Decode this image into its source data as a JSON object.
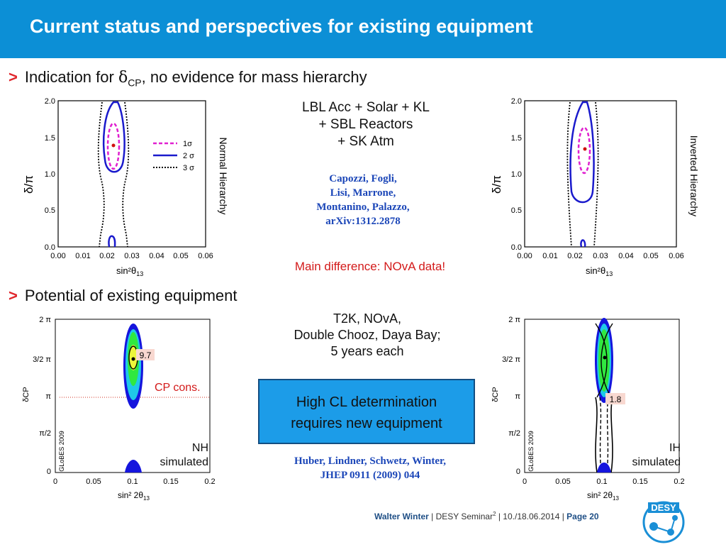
{
  "header": {
    "title": "Current status and perspectives for existing equipment",
    "color": "#0c8fd6"
  },
  "bullets": {
    "mark": ">",
    "b1_prefix": "Indication for ",
    "b1_delta": "δ",
    "b1_sub": "CP",
    "b1_suffix": ", no evidence for mass hierarchy",
    "b2": "Potential of existing equipment"
  },
  "top_plots": {
    "ticks_y": [
      "2.0",
      "1.5",
      "1.0",
      "0.5",
      "0.0"
    ],
    "ticks_x": [
      "0.00",
      "0.01",
      "0.02",
      "0.03",
      "0.04",
      "0.05",
      "0.06"
    ],
    "ylabel": "δ/π",
    "xlabel": "sin²θ",
    "xlabel_sub": "13",
    "left_label": "Normal Hierarchy",
    "right_label": "Inverted Hierarchy",
    "legend": [
      "1σ",
      "2 σ",
      "3 σ"
    ]
  },
  "center_top": {
    "lines": [
      "LBL Acc + Solar + KL",
      "+ SBL Reactors",
      "+ SK Atm"
    ],
    "cite": [
      "Capozzi, Fogli,",
      "Lisi, Marrone,",
      "Montanino, Palazzo,",
      "arXiv:1312.2878"
    ],
    "main_diff": "Main difference: NOvA data!"
  },
  "bottom_plots": {
    "ticks_y": [
      "2 π",
      "3/2 π",
      "π",
      "π/2",
      "0"
    ],
    "ticks_x": [
      "0",
      "0.05",
      "0.1",
      "0.15",
      "0.2"
    ],
    "ylabel": "δCP",
    "xlabel": "sin² 2θ",
    "xlabel_sub": "13",
    "globes": "GLoBES 2009",
    "left_value": "9.7",
    "right_value": "1.8",
    "cp_cons": "CP cons.",
    "nh": [
      "NH",
      "simulated"
    ],
    "ih": [
      "IH",
      "simulated"
    ]
  },
  "center_bottom": {
    "lines": [
      "T2K, NOvA,",
      "Double Chooz, Daya Bay;",
      "5 years each"
    ],
    "box": [
      "High CL determination",
      "requires new equipment"
    ],
    "cite": [
      "Huber, Lindner,  Schwetz, Winter,",
      "JHEP 0911 (2009) 044"
    ]
  },
  "footer": {
    "author": "Walter Winter",
    "sep1": " | DESY Seminar",
    "sup": "2",
    "sep2": " | 10./18.06.2014 | ",
    "page": "Page 20",
    "logo": "DESY"
  }
}
